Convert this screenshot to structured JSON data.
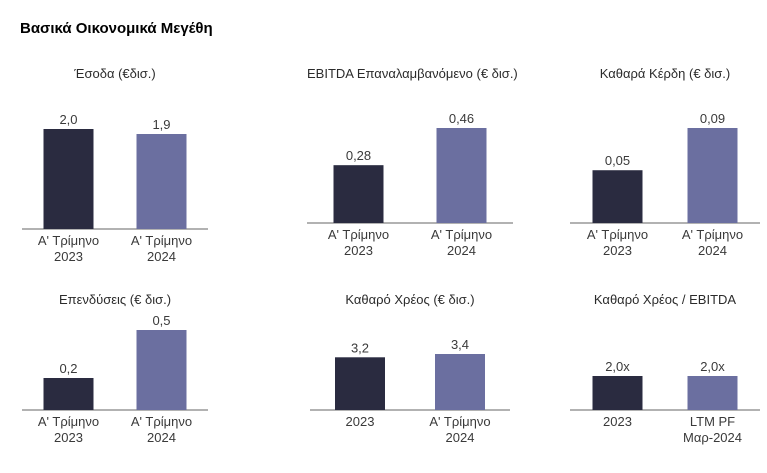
{
  "page_title": "Βασικά Οικονομικά Μεγέθη",
  "colors": {
    "dark_bar": "#2a2b40",
    "light_bar": "#6b6fa0",
    "axis": "#666666"
  },
  "chart_data": [
    {
      "type": "bar",
      "title": "Έσοδα (€δισ.)",
      "categories": [
        [
          "Α' Τρίμηνο",
          "2023"
        ],
        [
          "Α' Τρίμηνο",
          "2024"
        ]
      ],
      "values": [
        2.0,
        1.9
      ],
      "value_labels": [
        "2,0",
        "1,9"
      ],
      "ylim": [
        0,
        2.0
      ]
    },
    {
      "type": "bar",
      "title": "EBITDA Επαναλαμβανόμενο (€ δισ.)",
      "categories": [
        [
          "Α' Τρίμηνο",
          "2023"
        ],
        [
          "Α' Τρίμηνο",
          "2024"
        ]
      ],
      "values": [
        0.28,
        0.46
      ],
      "value_labels": [
        "0,28",
        "0,46"
      ],
      "ylim": [
        0,
        0.46
      ]
    },
    {
      "type": "bar",
      "title": "Καθαρά Κέρδη (€ δισ.)",
      "categories": [
        [
          "Α' Τρίμηνο",
          "2023"
        ],
        [
          "Α' Τρίμηνο",
          "2024"
        ]
      ],
      "values": [
        0.05,
        0.09
      ],
      "value_labels": [
        "0,05",
        "0,09"
      ],
      "ylim": [
        0,
        0.09
      ]
    },
    {
      "type": "bar",
      "title": "Επενδύσεις (€ δισ.)",
      "categories": [
        [
          "Α' Τρίμηνο",
          "2023"
        ],
        [
          "Α' Τρίμηνο",
          "2024"
        ]
      ],
      "values": [
        0.2,
        0.5
      ],
      "value_labels": [
        "0,2",
        "0,5"
      ],
      "ylim": [
        0,
        0.5
      ]
    },
    {
      "type": "bar",
      "title": "Καθαρό Χρέος (€ δισ.)",
      "categories": [
        [
          "2023"
        ],
        [
          "Α' Τρίμηνο",
          "2024"
        ]
      ],
      "values": [
        3.2,
        3.4
      ],
      "value_labels": [
        "3,2",
        "3,4"
      ],
      "ylim": [
        0,
        3.4
      ]
    },
    {
      "type": "bar",
      "title": "Καθαρό Χρέος / EBITDA",
      "categories": [
        [
          "2023"
        ],
        [
          "LTM PF",
          "Μαρ-2024"
        ]
      ],
      "values": [
        2.0,
        2.0
      ],
      "value_labels": [
        "2,0x",
        "2,0x"
      ],
      "ylim": [
        0,
        2.0
      ]
    }
  ]
}
